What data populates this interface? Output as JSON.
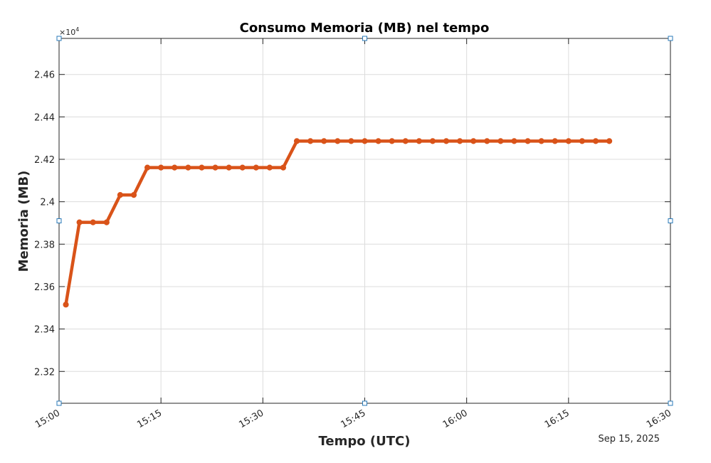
{
  "chart_data": {
    "type": "line",
    "title": "Consumo Memoria (MB) nel tempo",
    "xlabel": "Tempo (UTC)",
    "ylabel": "Memoria (MB)",
    "y_exponent_label": "×10",
    "y_exponent_power": "4",
    "date_label": "Sep 15, 2025",
    "x_ticks": [
      "15:00",
      "15:15",
      "15:30",
      "15:45",
      "16:00",
      "16:15",
      "16:30"
    ],
    "x_tick_minutes": [
      0,
      15,
      30,
      45,
      60,
      75,
      90
    ],
    "y_ticks": [
      "2.32",
      "2.34",
      "2.36",
      "2.38",
      "2.4",
      "2.42",
      "2.44",
      "2.46"
    ],
    "y_tick_values": [
      23200,
      23400,
      23600,
      23800,
      24000,
      24200,
      24400,
      24600
    ],
    "xlim": [
      "15:00",
      "16:30"
    ],
    "ylim": [
      23050,
      24770
    ],
    "grid": true,
    "series": [
      {
        "color": "#d95319",
        "x": [
          "15:01",
          "15:03",
          "15:05",
          "15:07",
          "15:09",
          "15:11",
          "15:13",
          "15:15",
          "15:17",
          "15:19",
          "15:21",
          "15:23",
          "15:25",
          "15:27",
          "15:29",
          "15:31",
          "15:33",
          "15:35",
          "15:37",
          "15:39",
          "15:41",
          "15:43",
          "15:45",
          "15:47",
          "15:49",
          "15:51",
          "15:53",
          "15:55",
          "15:57",
          "15:59",
          "16:01",
          "16:03",
          "16:05",
          "16:07",
          "16:09",
          "16:11",
          "16:13",
          "16:15",
          "16:17",
          "16:19",
          "16:21"
        ],
        "y": [
          23515,
          23903,
          23903,
          23903,
          24032,
          24032,
          24161,
          24161,
          24161,
          24161,
          24161,
          24161,
          24161,
          24161,
          24161,
          24161,
          24161,
          24286,
          24286,
          24286,
          24286,
          24286,
          24286,
          24286,
          24286,
          24286,
          24286,
          24286,
          24286,
          24286,
          24286,
          24286,
          24286,
          24286,
          24286,
          24286,
          24286,
          24286,
          24286,
          24286,
          24286
        ]
      }
    ]
  }
}
